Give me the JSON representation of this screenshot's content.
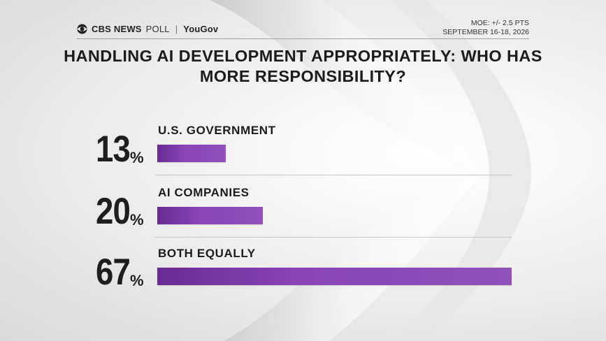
{
  "header": {
    "brand_cbs": "CBS NEWS",
    "brand_poll": "POLL",
    "brand_sep": "|",
    "brand_partner": "YouGov",
    "moe": "MOE: +/- 2.5 PTS",
    "dates": "SEPTEMBER 16-18, 2026"
  },
  "colors": {
    "bar": "#8a44b6",
    "text": "#1c1c1c"
  },
  "chart_data": {
    "type": "bar",
    "orientation": "horizontal",
    "title": "HANDLING AI DEVELOPMENT APPROPRIATELY: WHO HAS MORE RESPONSIBILITY?",
    "categories": [
      "U.S. GOVERNMENT",
      "AI COMPANIES",
      "BOTH EQUALLY"
    ],
    "values": [
      13,
      20,
      67
    ],
    "value_labels": [
      "13",
      "20",
      "67"
    ],
    "unit": "%",
    "xlim": [
      0,
      67
    ]
  }
}
